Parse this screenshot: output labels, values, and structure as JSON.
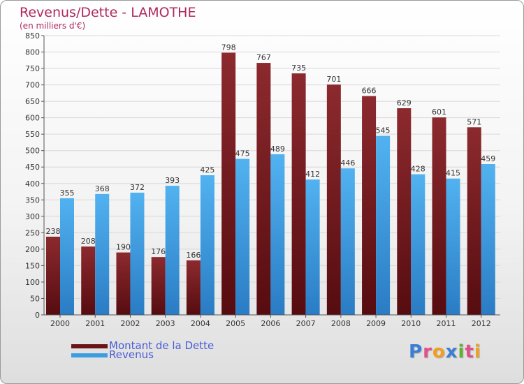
{
  "header": {
    "title": "Revenus/Dette - LAMOTHE",
    "subtitle": "(en milliers d'€)"
  },
  "colors": {
    "debt": "#7a1c20",
    "revenue": "#3a9ee0",
    "title": "#b0285e",
    "legend_text": "#4a5cd6"
  },
  "logo": {
    "letters": [
      "P",
      "r",
      "o",
      "x",
      "i",
      "t",
      "i"
    ],
    "colors": [
      "#3a7fd6",
      "#e0508a",
      "#f0a020",
      "#3a7fd6",
      "#60b030",
      "#e0508a",
      "#f0a020"
    ]
  },
  "chart_data": {
    "type": "bar",
    "categories": [
      "2000",
      "2001",
      "2002",
      "2003",
      "2004",
      "2005",
      "2006",
      "2007",
      "2008",
      "2009",
      "2010",
      "2011",
      "2012"
    ],
    "series": [
      {
        "name": "Montant de la Dette",
        "values": [
          238,
          208,
          190,
          176,
          166,
          798,
          767,
          735,
          701,
          666,
          629,
          601,
          571
        ]
      },
      {
        "name": "Revenus",
        "values": [
          355,
          368,
          372,
          393,
          425,
          475,
          489,
          412,
          446,
          545,
          428,
          415,
          459
        ]
      }
    ],
    "ylim": [
      0,
      850
    ],
    "ytick_step": 50,
    "grid": true,
    "legend_position": "bottom-left"
  }
}
